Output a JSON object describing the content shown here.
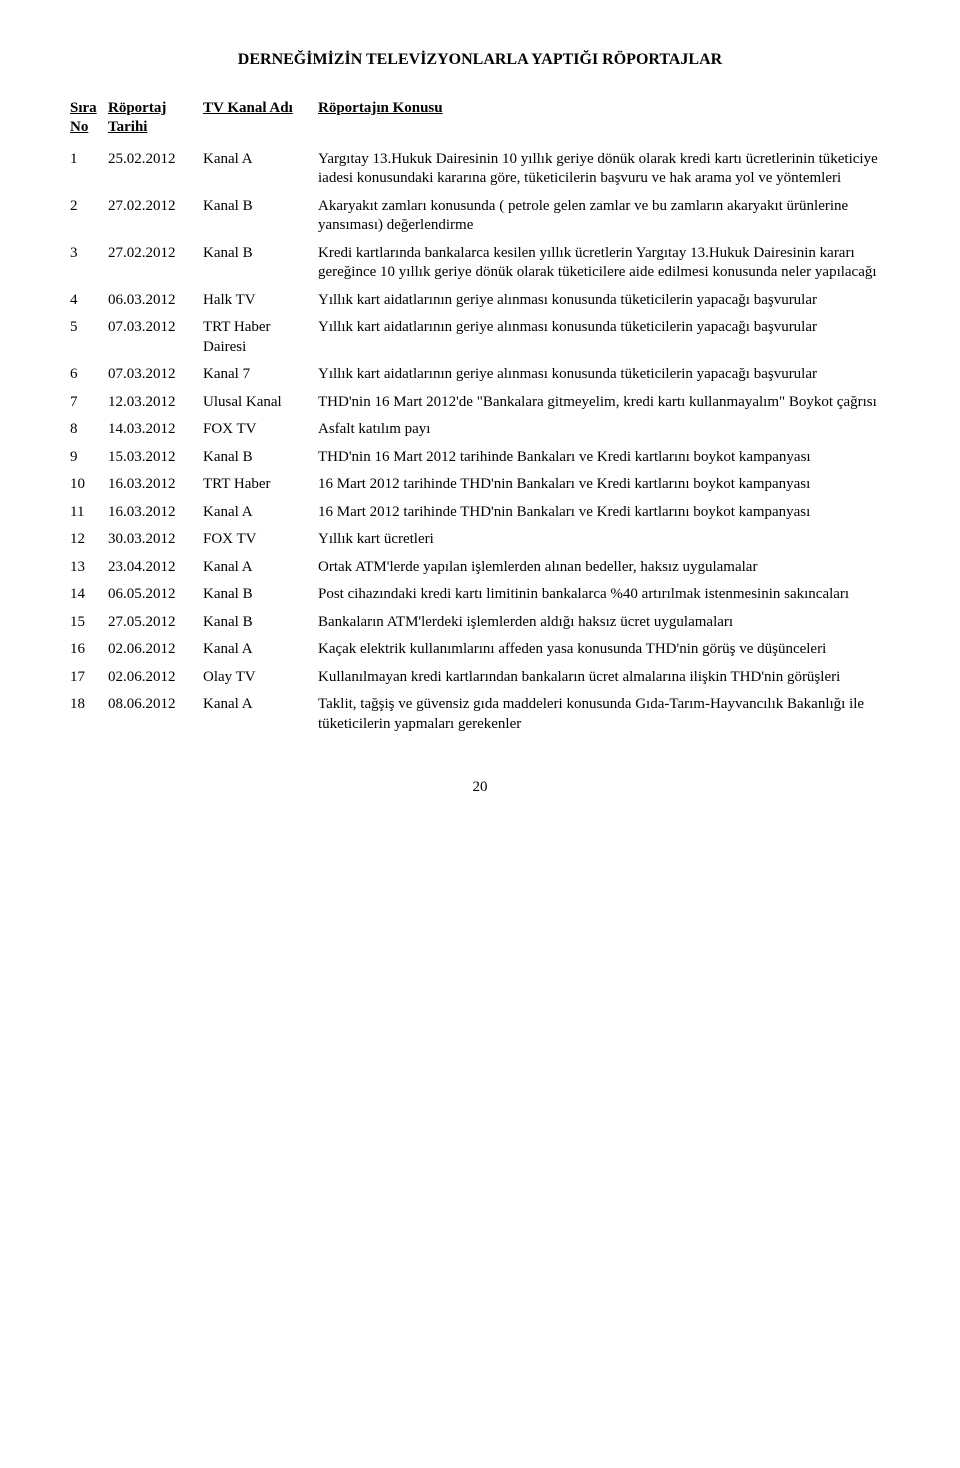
{
  "title": "DERNEĞİMİZİN TELEVİZYONLARLA YAPTIĞI RÖPORTAJLAR",
  "headers": {
    "no1": "Sıra",
    "no2": "No",
    "date1": "Röportaj",
    "date2": "Tarihi",
    "channel": "TV Kanal Adı",
    "topic": "Röportajın  Konusu"
  },
  "rows": [
    {
      "n": "1",
      "d": "25.02.2012",
      "c": "Kanal A",
      "t": "Yargıtay 13.Hukuk Dairesinin 10 yıllık geriye dönük olarak kredi kartı ücretlerinin tüketiciye iadesi konusundaki kararına göre, tüketicilerin başvuru ve hak arama yol ve yöntemleri"
    },
    {
      "n": "2",
      "d": "27.02.2012",
      "c": "Kanal B",
      "t": "Akaryakıt zamları konusunda ( petrole gelen zamlar ve bu zamların akaryakıt ürünlerine yansıması) değerlendirme"
    },
    {
      "n": "3",
      "d": "27.02.2012",
      "c": "Kanal B",
      "t": "Kredi kartlarında bankalarca kesilen yıllık ücretlerin Yargıtay 13.Hukuk Dairesinin kararı gereğince 10 yıllık geriye dönük olarak tüketicilere aide edilmesi konusunda neler yapılacağı"
    },
    {
      "n": "4",
      "d": "06.03.2012",
      "c": "Halk TV",
      "t": "Yıllık kart aidatlarının geriye alınması konusunda tüketicilerin yapacağı başvurular"
    },
    {
      "n": "5",
      "d": "07.03.2012",
      "c": "TRT Haber Dairesi",
      "t": "Yıllık kart aidatlarının geriye alınması konusunda tüketicilerin yapacağı başvurular"
    },
    {
      "n": "6",
      "d": "07.03.2012",
      "c": "Kanal 7",
      "t": "Yıllık kart aidatlarının geriye alınması konusunda tüketicilerin yapacağı başvurular"
    },
    {
      "n": "7",
      "d": "12.03.2012",
      "c": "Ulusal Kanal",
      "t": "THD'nin 16 Mart 2012'de \"Bankalara gitmeyelim, kredi kartı kullanmayalım\" Boykot çağrısı"
    },
    {
      "n": "8",
      "d": "14.03.2012",
      "c": "FOX TV",
      "t": "Asfalt katılım payı"
    },
    {
      "n": "9",
      "d": "15.03.2012",
      "c": "Kanal B",
      "t": "THD'nin 16 Mart 2012 tarihinde Bankaları ve Kredi kartlarını boykot kampanyası"
    },
    {
      "n": "10",
      "d": "16.03.2012",
      "c": "TRT Haber",
      "t": "16 Mart 2012 tarihinde THD'nin Bankaları ve Kredi kartlarını boykot kampanyası"
    },
    {
      "n": "11",
      "d": "16.03.2012",
      "c": "Kanal A",
      "t": "16 Mart 2012 tarihinde THD'nin Bankaları ve Kredi kartlarını boykot kampanyası"
    },
    {
      "n": "12",
      "d": "30.03.2012",
      "c": "FOX TV",
      "t": "Yıllık kart ücretleri"
    },
    {
      "n": "13",
      "d": "23.04.2012",
      "c": "Kanal A",
      "t": "Ortak ATM'lerde yapılan işlemlerden alınan bedeller, haksız uygulamalar"
    },
    {
      "n": "14",
      "d": "06.05.2012",
      "c": "Kanal B",
      "t": "Post cihazındaki kredi kartı limitinin bankalarca %40 artırılmak istenmesinin sakıncaları"
    },
    {
      "n": "15",
      "d": "27.05.2012",
      "c": "Kanal B",
      "t": "Bankaların ATM'lerdeki işlemlerden aldığı haksız ücret uygulamaları"
    },
    {
      "n": "16",
      "d": "02.06.2012",
      "c": "Kanal A",
      "t": "Kaçak elektrik kullanımlarını affeden yasa konusunda THD'nin görüş ve düşünceleri"
    },
    {
      "n": "17",
      "d": "02.06.2012",
      "c": "Olay TV",
      "t": "Kullanılmayan kredi kartlarından bankaların ücret almalarına ilişkin THD'nin görüşleri"
    },
    {
      "n": "18",
      "d": "08.06.2012",
      "c": "Kanal A",
      "t": "Taklit, tağşiş ve güvensiz gıda maddeleri konusunda Gıda-Tarım-Hayvancılık Bakanlığı ile tüketicilerin yapmaları gerekenler"
    }
  ],
  "page_number": "20"
}
